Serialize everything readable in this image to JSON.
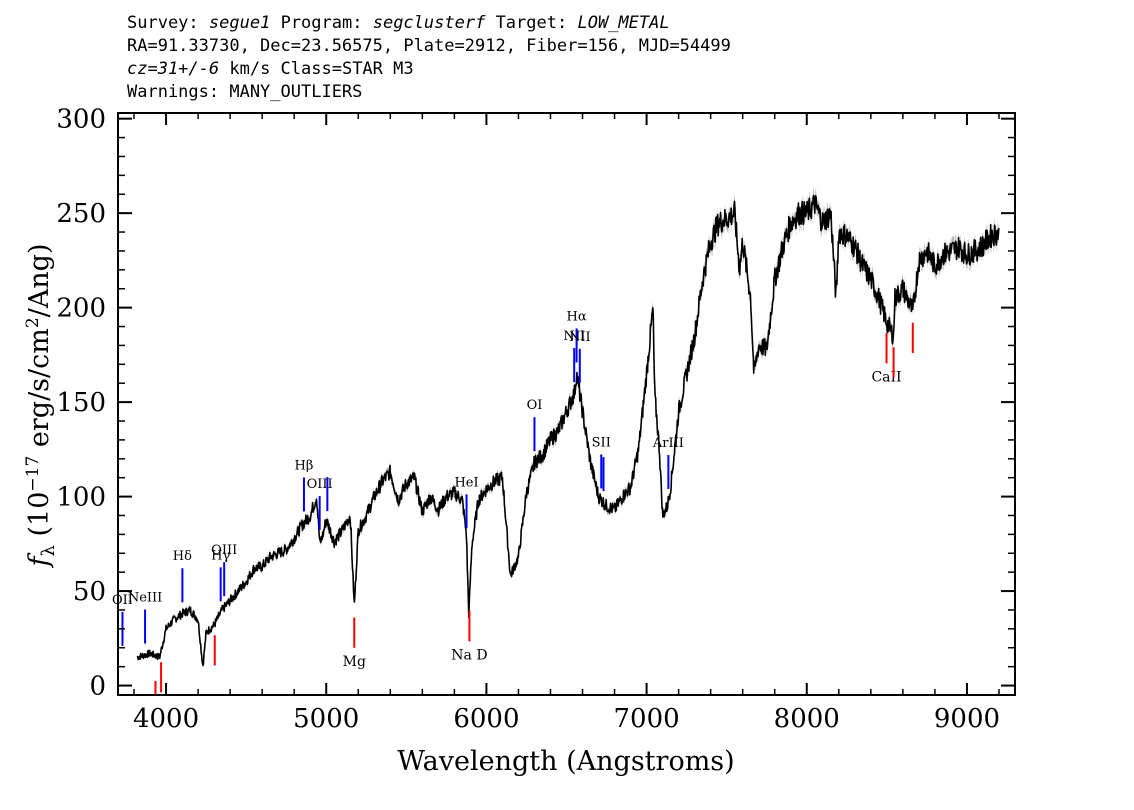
{
  "header": {
    "survey_label": "Survey:",
    "survey": "segue1",
    "program_label": "Program:",
    "program": "segclusterf",
    "target_label": "Target:",
    "target": "LOW_METAL",
    "line2": "RA=91.33730, Dec=23.56575, Plate=2912, Fiber=156, MJD=54499",
    "cz": "cz=31+/-6",
    "cz_units": "km/s Class=STAR M3",
    "warnings": "Warnings: MANY_OUTLIERS"
  },
  "chart_data": {
    "type": "line",
    "title": "",
    "xlabel": "Wavelength (Angstroms)",
    "ylabel": "f_λ (10^-17 erg/s/cm^2/Ang)",
    "xlim": [
      3700,
      9300
    ],
    "ylim": [
      -5,
      303
    ],
    "xticks": [
      4000,
      5000,
      6000,
      7000,
      8000,
      9000
    ],
    "yticks": [
      0,
      50,
      100,
      150,
      200,
      250,
      300
    ],
    "grid": false,
    "colors": {
      "spectrum": "#000000",
      "error": "#b8b8b8",
      "emission": "#0000ff",
      "absorption": "#ff0000"
    },
    "series": [
      {
        "x": [
          3820,
          3900,
          3960,
          4000,
          4050,
          4100,
          4150,
          4200,
          4230,
          4250,
          4300,
          4350,
          4400,
          4450,
          4500,
          4550,
          4600,
          4650,
          4700,
          4750,
          4800,
          4850,
          4900,
          4940,
          4960,
          4980,
          5000,
          5050,
          5100,
          5150,
          5175,
          5200,
          5250,
          5300,
          5350,
          5400,
          5450,
          5500,
          5550,
          5600,
          5650,
          5700,
          5750,
          5800,
          5850,
          5875,
          5890,
          5910,
          5950,
          6000,
          6050,
          6100,
          6150,
          6200,
          6250,
          6300,
          6350,
          6400,
          6450,
          6500,
          6550,
          6563,
          6600,
          6650,
          6700,
          6750,
          6800,
          6850,
          6900,
          6950,
          7000,
          7040,
          7050,
          7080,
          7100,
          7130,
          7150,
          7200,
          7250,
          7300,
          7350,
          7400,
          7450,
          7500,
          7550,
          7580,
          7600,
          7650,
          7670,
          7700,
          7750,
          7800,
          7850,
          7900,
          7950,
          8000,
          8050,
          8100,
          8150,
          8183,
          8200,
          8250,
          8300,
          8350,
          8400,
          8450,
          8500,
          8542,
          8550,
          8600,
          8662,
          8700,
          8750,
          8800,
          8850,
          8900,
          8950,
          9000,
          9050,
          9100,
          9150,
          9200
        ],
        "y": [
          15,
          17,
          15,
          30,
          35,
          38,
          40,
          35,
          10,
          28,
          32,
          40,
          45,
          50,
          55,
          62,
          63,
          68,
          70,
          72,
          78,
          85,
          90,
          100,
          75,
          80,
          88,
          76,
          82,
          90,
          42,
          82,
          90,
          100,
          108,
          113,
          98,
          107,
          110,
          92,
          100,
          93,
          100,
          102,
          98,
          80,
          38,
          75,
          98,
          104,
          108,
          110,
          58,
          68,
          102,
          118,
          122,
          130,
          135,
          145,
          155,
          165,
          145,
          118,
          100,
          95,
          93,
          100,
          105,
          125,
          165,
          200,
          155,
          125,
          90,
          95,
          105,
          145,
          165,
          185,
          215,
          235,
          245,
          247,
          250,
          220,
          235,
          205,
          165,
          180,
          178,
          215,
          232,
          245,
          250,
          250,
          255,
          245,
          250,
          205,
          240,
          238,
          232,
          222,
          215,
          205,
          192,
          185,
          205,
          210,
          198,
          225,
          230,
          222,
          228,
          230,
          232,
          228,
          230,
          233,
          238,
          240
        ]
      }
    ],
    "lines_emission": [
      {
        "name": "OII",
        "wl": 3728
      },
      {
        "name": "NeIII",
        "wl": 3869
      },
      {
        "name": "Hδ",
        "wl": 4102
      },
      {
        "name": "Hγ",
        "wl": 4341
      },
      {
        "name": "OIII",
        "wl": 4363
      },
      {
        "name": "Hβ",
        "wl": 4861
      },
      {
        "name": "OIII",
        "wl": 4959
      },
      {
        "name": "",
        "wl": 5007
      },
      {
        "name": "HeI",
        "wl": 5876
      },
      {
        "name": "OI",
        "wl": 6300
      },
      {
        "name": "NII",
        "wl": 6548
      },
      {
        "name": "Hα",
        "wl": 6563
      },
      {
        "name": "NII",
        "wl": 6583
      },
      {
        "name": "SII",
        "wl": 6717
      },
      {
        "name": "",
        "wl": 6731
      },
      {
        "name": "ArIII",
        "wl": 7136
      }
    ],
    "lines_absorption": [
      {
        "name": "",
        "wl": 3934
      },
      {
        "name": "",
        "wl": 3969
      },
      {
        "name": "",
        "wl": 4304
      },
      {
        "name": "Mg",
        "wl": 5175
      },
      {
        "name": "Na D",
        "wl": 5894
      },
      {
        "name": "CaII",
        "wl": 8498
      },
      {
        "name": "",
        "wl": 8542
      },
      {
        "name": "",
        "wl": 8662
      }
    ]
  }
}
